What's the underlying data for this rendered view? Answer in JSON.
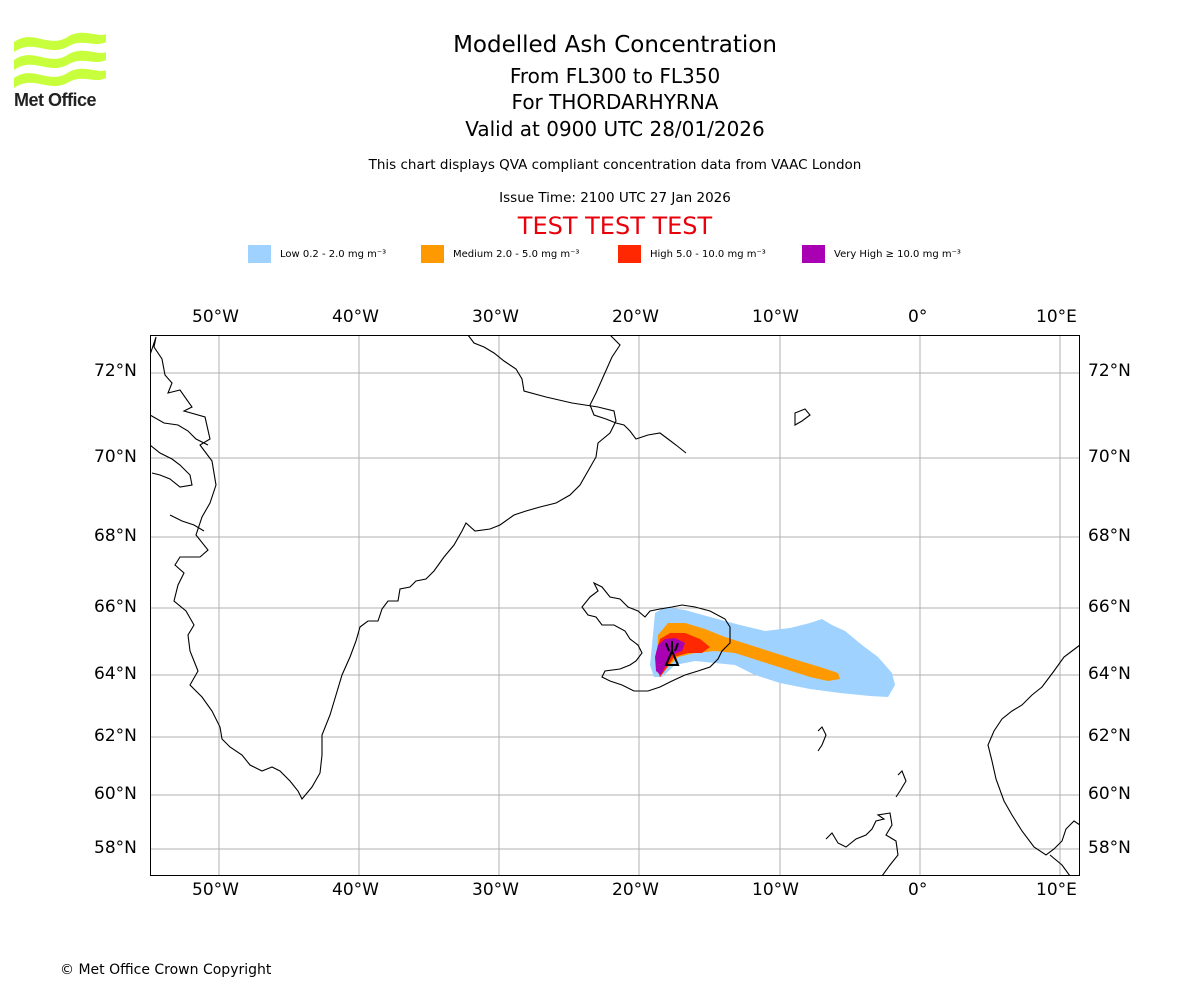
{
  "logo": {
    "text": "Met Office",
    "color": "#c8ff3c"
  },
  "title": "Modelled Ash Concentration",
  "subtitle1": "From FL300 to FL350",
  "subtitle2": "For THORDARHYRNA",
  "subtitle3": "Valid at 0900 UTC 28/01/2026",
  "description": "This chart displays QVA compliant concentration data from VAAC London",
  "issue_time": "Issue Time: 2100 UTC 27 Jan 2026",
  "test_banner": "TEST TEST TEST",
  "legend": [
    {
      "label": "Low 0.2 - 2.0 mg m⁻³",
      "color": "#a0d2ff"
    },
    {
      "label": "Medium 2.0 - 5.0 mg m⁻³",
      "color": "#ff9900"
    },
    {
      "label": "High 5.0 - 10.0 mg m⁻³",
      "color": "#ff2800"
    },
    {
      "label": "Very High ≥ 10.0 mg m⁻³",
      "color": "#aa00b4"
    }
  ],
  "map": {
    "lon_labels": [
      "50°W",
      "40°W",
      "30°W",
      "20°W",
      "10°W",
      "0°",
      "10°E"
    ],
    "lat_labels": [
      "72°N",
      "70°N",
      "68°N",
      "66°N",
      "64°N",
      "62°N",
      "60°N",
      "58°N"
    ],
    "volcano_symbol": "volcano-icon"
  },
  "copyright": "© Met Office Crown Copyright"
}
